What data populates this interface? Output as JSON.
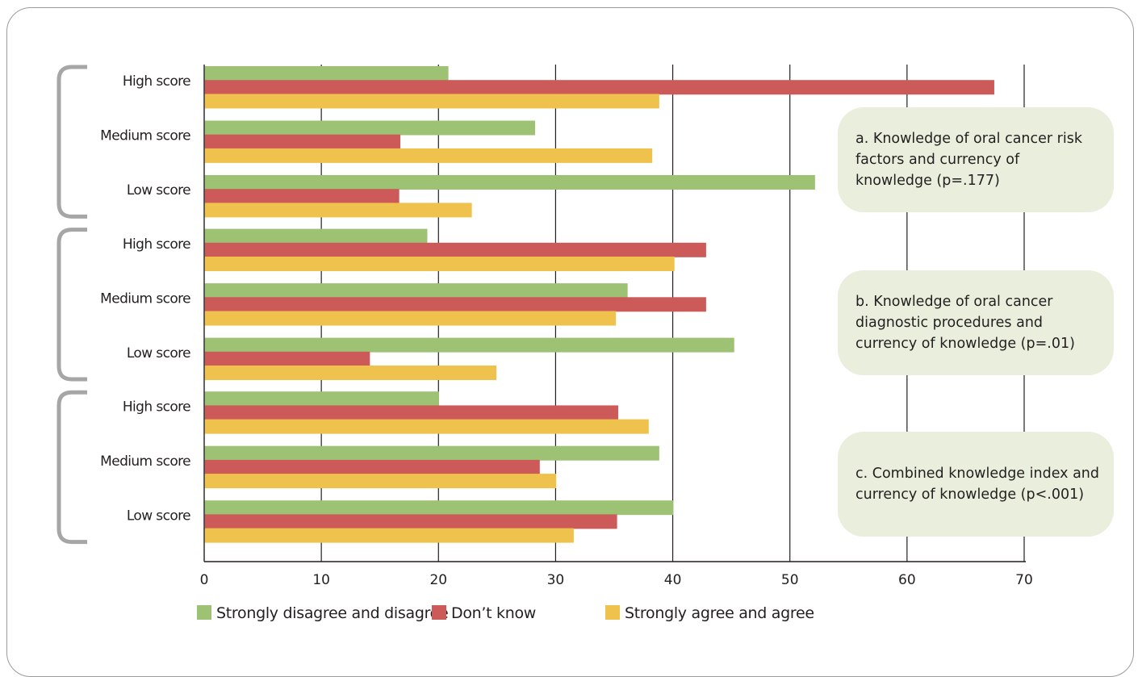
{
  "chart_data": {
    "type": "bar",
    "orientation": "horizontal",
    "xlim": [
      0,
      70
    ],
    "x_ticks": [
      "0",
      "10",
      "20",
      "30",
      "40",
      "50",
      "60",
      "70"
    ],
    "grid": "vertical",
    "legend_position": "bottom",
    "groups": [
      {
        "annotation": "a. Knowledge of oral cancer risk factors and currency of knowledge (p=.177)",
        "categories": [
          "High score",
          "Medium score",
          "Low score"
        ],
        "series": [
          {
            "name": "Strongly disagree and disagree",
            "values": [
              20.8,
              28.2,
              52.1
            ]
          },
          {
            "name": "Don’t know",
            "values": [
              67.4,
              16.7,
              16.6
            ]
          },
          {
            "name": "Strongly agree and agree",
            "values": [
              38.8,
              38.2,
              22.8
            ]
          }
        ]
      },
      {
        "annotation": "b. Knowledge of oral cancer diagnostic procedures and currency of knowledge (p=.01)",
        "categories": [
          "High score",
          "Medium score",
          "Low score"
        ],
        "series": [
          {
            "name": "Strongly disagree and disagree",
            "values": [
              19.0,
              36.1,
              45.2
            ]
          },
          {
            "name": "Don’t know",
            "values": [
              42.8,
              42.8,
              14.1
            ]
          },
          {
            "name": "Strongly agree and agree",
            "values": [
              40.1,
              35.1,
              24.9
            ]
          }
        ]
      },
      {
        "annotation": "c. Combined knowledge index and currency of knowledge (p<.001)",
        "categories": [
          "High score",
          "Medium score",
          "Low score"
        ],
        "series": [
          {
            "name": "Strongly disagree and disagree",
            "values": [
              20.0,
              38.8,
              40.0
            ]
          },
          {
            "name": "Don’t know",
            "values": [
              35.3,
              28.6,
              35.2
            ]
          },
          {
            "name": "Strongly agree and agree",
            "values": [
              37.9,
              30.0,
              31.5
            ]
          }
        ]
      }
    ],
    "legend": [
      {
        "name": "Strongly disagree and disagree",
        "color": "#9dc274"
      },
      {
        "name": "Don’t know",
        "color": "#cb5a59"
      },
      {
        "name": "Strongly agree and agree",
        "color": "#eec24d"
      }
    ],
    "colors": {
      "series": [
        "#9dc274",
        "#cb5a59",
        "#eec24d"
      ],
      "bracket": "#a6a6a6",
      "gridline": "#231f20",
      "annotation_box": "#e9efdc",
      "frame": "#9b9b9b"
    }
  }
}
